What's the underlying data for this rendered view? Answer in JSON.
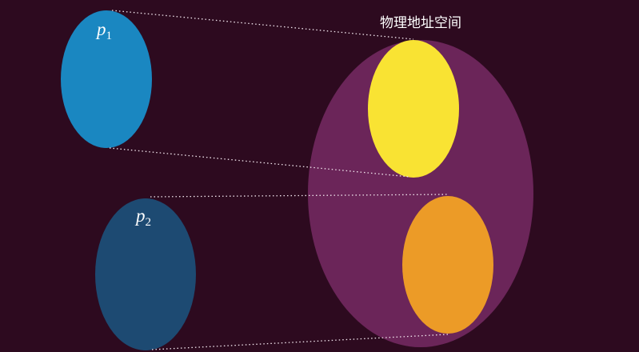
{
  "title": "物理地址空间",
  "nodes": [
    {
      "label": "p",
      "subscript": "1"
    },
    {
      "label": "p",
      "subscript": "2"
    }
  ]
}
